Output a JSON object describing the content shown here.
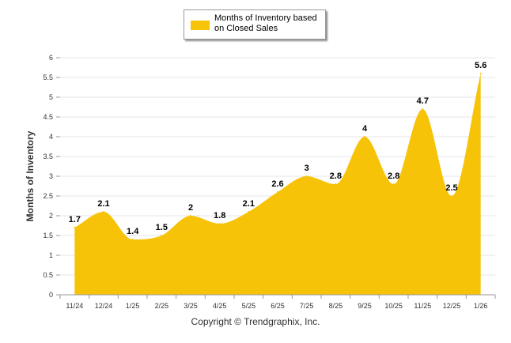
{
  "chart_data": {
    "type": "area",
    "title": "",
    "xlabel": "",
    "ylabel": "Months of Inventory",
    "categories": [
      "11/24",
      "12/24",
      "1/25",
      "2/25",
      "3/25",
      "4/25",
      "5/25",
      "6/25",
      "7/25",
      "8/25",
      "9/25",
      "10/25",
      "11/25",
      "12/25",
      "1/26"
    ],
    "series": [
      {
        "name": "Months of Inventory based on Closed Sales",
        "values": [
          1.7,
          2.1,
          1.4,
          1.5,
          2,
          1.8,
          2.1,
          2.6,
          3,
          2.8,
          4,
          2.8,
          4.7,
          2.5,
          5.6
        ],
        "labels": [
          "1.7",
          "2.1",
          "1.4",
          "1.5",
          "2",
          "1.8",
          "2.1",
          "2.6",
          "3",
          "2.8",
          "4",
          "2.8",
          "4.7",
          "2.5",
          "5.6"
        ]
      }
    ],
    "ylim": [
      0,
      6
    ],
    "yticks": [
      "0",
      "0.5",
      "1",
      "1.5",
      "2",
      "2.5",
      "3",
      "3.5",
      "4",
      "4.5",
      "5",
      "5.5",
      "6"
    ],
    "grid": true,
    "legend_position": "top-center"
  },
  "legend": {
    "label": "Months of Inventory based on Closed Sales"
  },
  "colors": {
    "fill": "#F7C308",
    "grid": "#e6e6e6",
    "axis": "#999999"
  },
  "footer": {
    "copyright": "Copyright © Trendgraphix, Inc."
  }
}
